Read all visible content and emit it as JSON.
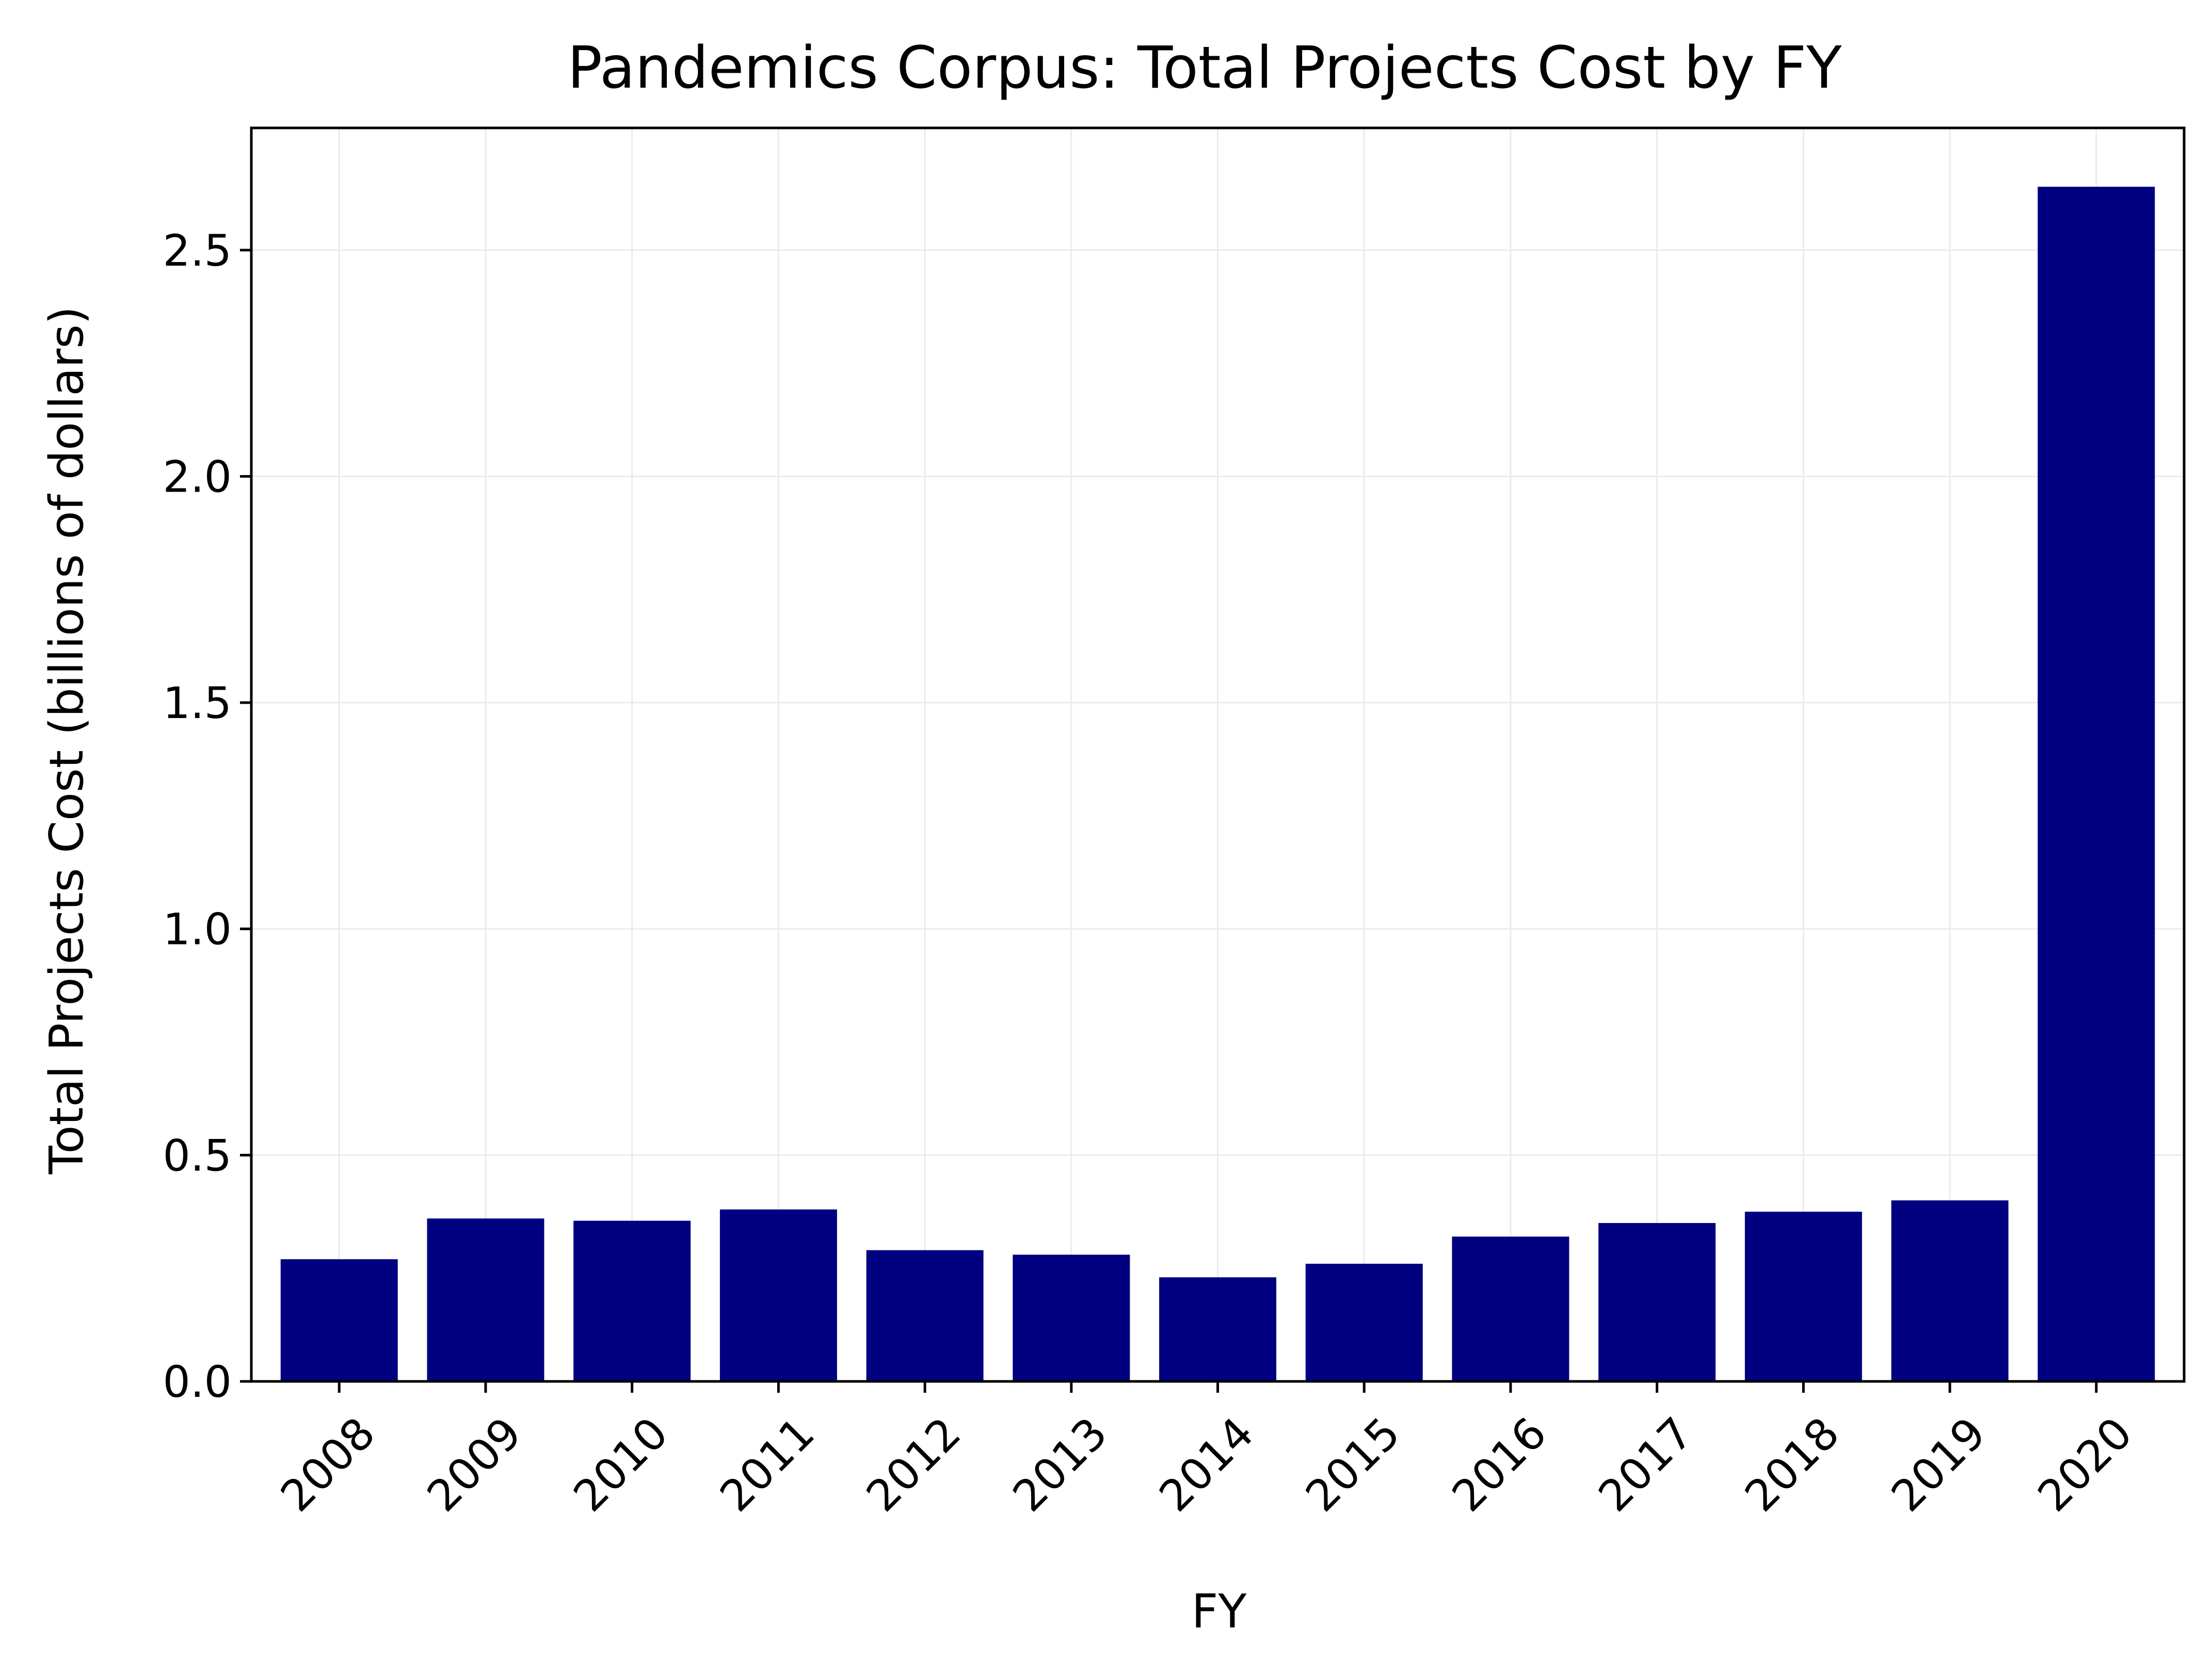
{
  "chart_data": {
    "type": "bar",
    "title": "Pandemics Corpus: Total Projects Cost by FY",
    "xlabel": "FY",
    "ylabel": "Total Projects Cost (billions of dollars)",
    "categories": [
      "2008",
      "2009",
      "2010",
      "2011",
      "2012",
      "2013",
      "2014",
      "2015",
      "2016",
      "2017",
      "2018",
      "2019",
      "2020"
    ],
    "values": [
      0.27,
      0.36,
      0.355,
      0.38,
      0.29,
      0.28,
      0.23,
      0.26,
      0.32,
      0.35,
      0.375,
      0.4,
      2.64
    ],
    "ylim": [
      0,
      2.77
    ],
    "yticks": [
      0.0,
      0.5,
      1.0,
      1.5,
      2.0,
      2.5
    ],
    "ytick_labels": [
      "0.0",
      "0.5",
      "1.0",
      "1.5",
      "2.0",
      "2.5"
    ],
    "xtick_rotation_deg": 45,
    "grid": true,
    "legend": false,
    "bar_color": "#000080"
  }
}
